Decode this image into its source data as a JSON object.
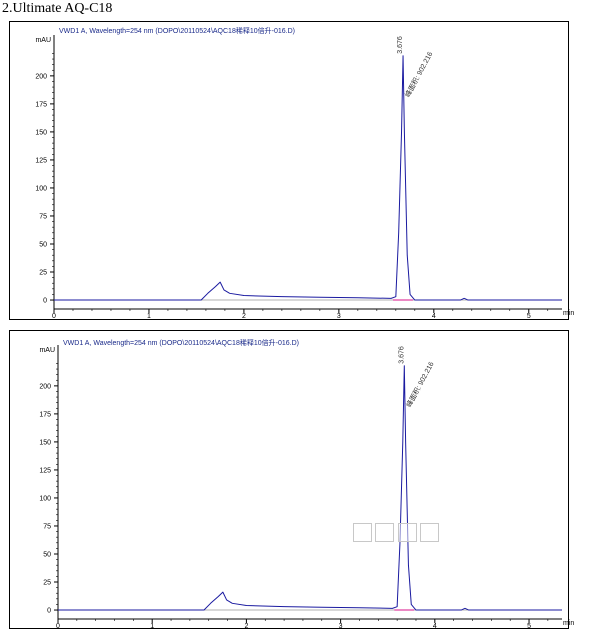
{
  "heading": "2.Ultimate AQ-C18",
  "chart_data": [
    {
      "type": "line",
      "title": "VWD1 A, Wavelength=254 nm (DOPO\\20110524\\AQC18稀释10倍升-016.D)",
      "ylabel": "mAU",
      "xlabel": "min",
      "xlim": [
        0,
        5.35
      ],
      "ylim": [
        -8,
        232
      ],
      "xticks": [
        0,
        1,
        2,
        3,
        4,
        5
      ],
      "yticks": [
        0,
        25,
        50,
        75,
        100,
        125,
        150,
        175,
        200
      ],
      "grid": false,
      "series": [
        {
          "color": "#1a1aa0",
          "points": [
            [
              0,
              0
            ],
            [
              1.55,
              0
            ],
            [
              1.62,
              6
            ],
            [
              1.7,
              12
            ],
            [
              1.75,
              16
            ],
            [
              1.79,
              9
            ],
            [
              1.85,
              6
            ],
            [
              2.0,
              4
            ],
            [
              2.4,
              3
            ],
            [
              2.8,
              2.5
            ],
            [
              3.2,
              2
            ],
            [
              3.55,
              1.5
            ],
            [
              3.6,
              3
            ],
            [
              3.63,
              60
            ],
            [
              3.66,
              150
            ],
            [
              3.676,
              218
            ],
            [
              3.69,
              150
            ],
            [
              3.72,
              40
            ],
            [
              3.75,
              5
            ],
            [
              3.8,
              0
            ],
            [
              4.28,
              0
            ],
            [
              4.32,
              1.5
            ],
            [
              4.36,
              0
            ],
            [
              5.35,
              0
            ]
          ]
        }
      ],
      "peak_labels": [
        {
          "x": 3.676,
          "text": "3.676"
        },
        {
          "x": 3.676,
          "text": "峰面积: 902.216"
        }
      ],
      "integration_baseline": {
        "color": "#e040a0",
        "x": [
          3.57,
          3.78
        ]
      }
    },
    {
      "type": "line",
      "title": "VWD1 A, Wavelength=254 nm (DOPO\\20110524\\AQC18稀释10倍升-016.D)",
      "ylabel": "mAU",
      "xlabel": "min",
      "xlim": [
        0,
        5.35
      ],
      "ylim": [
        -8,
        232
      ],
      "xticks": [
        0,
        1,
        2,
        3,
        4,
        5
      ],
      "yticks": [
        0,
        25,
        50,
        75,
        100,
        125,
        150,
        175,
        200
      ],
      "grid": false,
      "series": [
        {
          "color": "#1a1aa0",
          "points": [
            [
              0,
              0
            ],
            [
              1.55,
              0
            ],
            [
              1.62,
              6
            ],
            [
              1.7,
              12
            ],
            [
              1.75,
              16
            ],
            [
              1.79,
              9
            ],
            [
              1.85,
              6
            ],
            [
              2.0,
              4
            ],
            [
              2.4,
              3
            ],
            [
              2.8,
              2.5
            ],
            [
              3.2,
              2
            ],
            [
              3.55,
              1.5
            ],
            [
              3.6,
              3
            ],
            [
              3.63,
              60
            ],
            [
              3.66,
              150
            ],
            [
              3.676,
              218
            ],
            [
              3.69,
              150
            ],
            [
              3.72,
              40
            ],
            [
              3.75,
              5
            ],
            [
              3.8,
              0
            ],
            [
              4.28,
              0
            ],
            [
              4.32,
              1.5
            ],
            [
              4.36,
              0
            ],
            [
              5.35,
              0
            ]
          ]
        }
      ],
      "peak_labels": [
        {
          "x": 3.676,
          "text": "3.676"
        },
        {
          "x": 3.676,
          "text": "峰面积: 902.216"
        }
      ],
      "integration_baseline": {
        "color": "#e040a0",
        "x": [
          3.57,
          3.78
        ]
      }
    }
  ]
}
